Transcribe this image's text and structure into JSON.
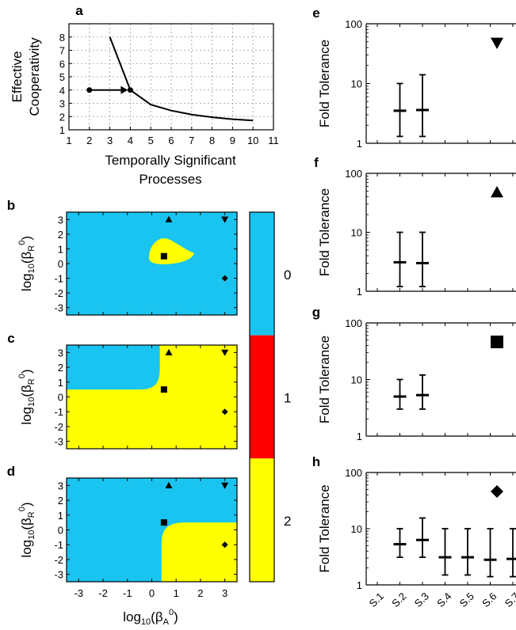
{
  "panel_labels": [
    "a",
    "b",
    "c",
    "d",
    "e",
    "f",
    "g",
    "h"
  ],
  "colors": {
    "blue": "#19c5f0",
    "yellow": "#ffff00",
    "red": "#ff0000"
  },
  "colorbar": {
    "labels": [
      "0",
      "1",
      "2"
    ],
    "colors": [
      "#19c5f0",
      "#ff0000",
      "#ffff00"
    ]
  },
  "chart_data": [
    {
      "id": "a",
      "type": "line",
      "xlabel_lines": [
        "Temporally Significant",
        "Processes"
      ],
      "ylabel_lines": [
        "Effective",
        "Cooperativity"
      ],
      "xlim": [
        1,
        11
      ],
      "ylim": [
        1,
        9
      ],
      "xticks": [
        "1",
        "2",
        "3",
        "4",
        "5",
        "6",
        "7",
        "8",
        "9",
        "10",
        "11"
      ],
      "yticks": [
        "1",
        "2",
        "3",
        "4",
        "5",
        "6",
        "7",
        "8"
      ],
      "grid": true,
      "series": [
        {
          "x": [
            3,
            4,
            5,
            6,
            7,
            8,
            9,
            10
          ],
          "y": [
            8.0,
            4.0,
            2.9,
            2.45,
            2.15,
            1.95,
            1.8,
            1.7
          ]
        }
      ],
      "annotations": [
        {
          "type": "arrow",
          "from": [
            2,
            4
          ],
          "to": [
            4,
            4
          ]
        }
      ]
    },
    {
      "id": "b",
      "type": "heatmap",
      "ylabel": "log10(βR0)",
      "xlim": [
        -3.5,
        3.5
      ],
      "ylim": [
        -3.5,
        3.5
      ],
      "xticks": [
        "-3",
        "-2",
        "-1",
        "0",
        "1",
        "2",
        "3"
      ],
      "yticks": [
        "-3",
        "-2",
        "-1",
        "0",
        "1",
        "2",
        "3"
      ],
      "background_class": 0,
      "regions": [
        {
          "class": 2,
          "shape": "blob",
          "around": [
            0.6,
            0.6
          ]
        }
      ],
      "markers": [
        {
          "shape": "triangle-up",
          "x": 0.7,
          "y": 3
        },
        {
          "shape": "triangle-down",
          "x": 3,
          "y": 3
        },
        {
          "shape": "square",
          "x": 0.5,
          "y": 0.5
        },
        {
          "shape": "diamond",
          "x": 3,
          "y": -1
        }
      ]
    },
    {
      "id": "c",
      "type": "heatmap",
      "ylabel": "log10(βR0)",
      "xlim": [
        -3.5,
        3.5
      ],
      "ylim": [
        -3.5,
        3.5
      ],
      "xticks": [
        "-3",
        "-2",
        "-1",
        "0",
        "1",
        "2",
        "3"
      ],
      "yticks": [
        "-3",
        "-2",
        "-1",
        "0",
        "1",
        "2",
        "3"
      ],
      "background_class": 2,
      "regions": [
        {
          "class": 0,
          "shape": "upper-left",
          "x_max": 0.2,
          "y_min": 0.5
        }
      ],
      "markers": [
        {
          "shape": "triangle-up",
          "x": 0.7,
          "y": 3
        },
        {
          "shape": "triangle-down",
          "x": 3,
          "y": 3
        },
        {
          "shape": "square",
          "x": 0.5,
          "y": 0.5
        },
        {
          "shape": "diamond",
          "x": 3,
          "y": -1
        }
      ]
    },
    {
      "id": "d",
      "type": "heatmap",
      "xlabel": "log10(βA0)",
      "ylabel": "log10(βR0)",
      "xlim": [
        -3.5,
        3.5
      ],
      "ylim": [
        -3.5,
        3.5
      ],
      "xticks": [
        "-3",
        "-2",
        "-1",
        "0",
        "1",
        "2",
        "3"
      ],
      "yticks": [
        "-3",
        "-2",
        "-1",
        "0",
        "1",
        "2",
        "3"
      ],
      "background_class": 0,
      "regions": [
        {
          "class": 2,
          "shape": "lower-right",
          "x_min": 0.4,
          "y_max": 0.5
        }
      ],
      "markers": [
        {
          "shape": "triangle-up",
          "x": 0.7,
          "y": 3
        },
        {
          "shape": "triangle-down",
          "x": 3,
          "y": 3
        },
        {
          "shape": "square",
          "x": 0.5,
          "y": 0.5
        },
        {
          "shape": "diamond",
          "x": 3,
          "y": -1
        }
      ]
    },
    {
      "id": "e",
      "type": "errorbar",
      "ylabel": "Fold Tolerance",
      "yscale": "log",
      "ylim": [
        1,
        100
      ],
      "yticks": [
        "1",
        "10",
        "100"
      ],
      "marker": "triangle-down",
      "points": [
        {
          "x": 2,
          "y": 3.5,
          "low": 1.3,
          "high": 10
        },
        {
          "x": 3,
          "y": 3.6,
          "low": 1.3,
          "high": 14
        }
      ]
    },
    {
      "id": "f",
      "type": "errorbar",
      "ylabel": "Fold Tolerance",
      "yscale": "log",
      "ylim": [
        1,
        100
      ],
      "yticks": [
        "1",
        "10",
        "100"
      ],
      "marker": "triangle-up",
      "points": [
        {
          "x": 2,
          "y": 3.1,
          "low": 1.2,
          "high": 10
        },
        {
          "x": 3,
          "y": 3.0,
          "low": 1.2,
          "high": 10
        }
      ]
    },
    {
      "id": "g",
      "type": "errorbar",
      "ylabel": "Fold Tolerance",
      "yscale": "log",
      "ylim": [
        1,
        100
      ],
      "yticks": [
        "1",
        "10",
        "100"
      ],
      "marker": "square",
      "points": [
        {
          "x": 2,
          "y": 5.0,
          "low": 3.0,
          "high": 10
        },
        {
          "x": 3,
          "y": 5.3,
          "low": 3.0,
          "high": 12
        }
      ]
    },
    {
      "id": "h",
      "type": "errorbar",
      "ylabel": "Fold Tolerance",
      "yscale": "log",
      "ylim": [
        1,
        100
      ],
      "yticks": [
        "1",
        "10",
        "100"
      ],
      "marker": "diamond",
      "categories": [
        "S.1",
        "S.2",
        "S.3",
        "S.4",
        "S.5",
        "S.6",
        "S.7"
      ],
      "points": [
        {
          "x": 2,
          "y": 5.3,
          "low": 3.1,
          "high": 10
        },
        {
          "x": 3,
          "y": 6.3,
          "low": 3.1,
          "high": 15.5
        },
        {
          "x": 4,
          "y": 3.1,
          "low": 1.5,
          "high": 10
        },
        {
          "x": 5,
          "y": 3.1,
          "low": 1.5,
          "high": 10
        },
        {
          "x": 6,
          "y": 2.8,
          "low": 1.4,
          "high": 10
        },
        {
          "x": 7,
          "y": 2.9,
          "low": 1.4,
          "high": 10
        }
      ]
    }
  ]
}
